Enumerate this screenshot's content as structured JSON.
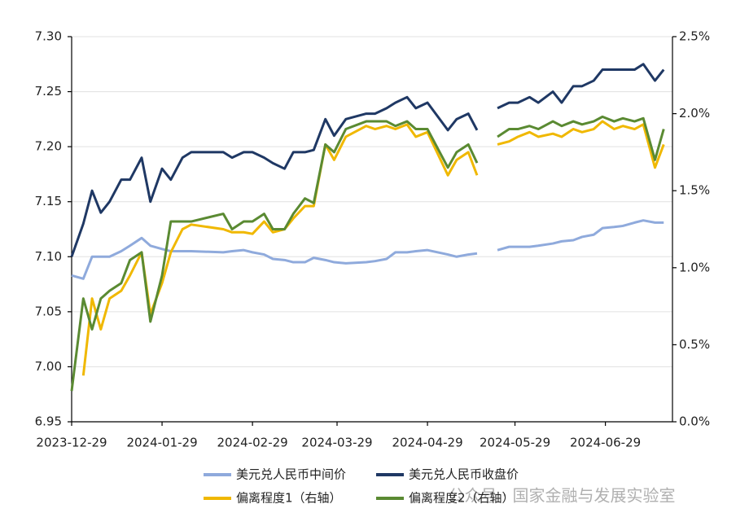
{
  "chart_data": {
    "type": "line",
    "x": [
      "2023-12-29",
      "2024-01-02",
      "2024-01-05",
      "2024-01-08",
      "2024-01-11",
      "2024-01-15",
      "2024-01-18",
      "2024-01-22",
      "2024-01-25",
      "2024-01-29",
      "2024-02-01",
      "2024-02-05",
      "2024-02-08",
      "2024-02-19",
      "2024-02-22",
      "2024-02-26",
      "2024-02-29",
      "2024-03-04",
      "2024-03-07",
      "2024-03-11",
      "2024-03-14",
      "2024-03-18",
      "2024-03-21",
      "2024-03-25",
      "2024-03-28",
      "2024-04-01",
      "2024-04-08",
      "2024-04-11",
      "2024-04-15",
      "2024-04-18",
      "2024-04-22",
      "2024-04-25",
      "2024-04-29",
      "2024-05-06",
      "2024-05-09",
      "2024-05-13",
      "2024-05-16",
      "2024-05-20",
      "2024-05-23",
      "2024-05-27",
      "2024-05-30",
      "2024-06-03",
      "2024-06-06",
      "2024-06-11",
      "2024-06-14",
      "2024-06-18",
      "2024-06-21",
      "2024-06-25",
      "2024-06-28",
      "2024-07-02",
      "2024-07-05",
      "2024-07-09",
      "2024-07-12",
      "2024-07-16",
      "2024-07-19"
    ],
    "series": [
      {
        "name": "美元兑人民币中间价",
        "color": "#8faadc",
        "values": [
          7.083,
          7.08,
          7.1,
          7.1,
          7.1,
          7.105,
          7.11,
          7.117,
          7.11,
          7.107,
          7.105,
          7.105,
          7.105,
          7.104,
          7.105,
          7.106,
          7.104,
          7.102,
          7.098,
          7.097,
          7.095,
          7.095,
          7.099,
          7.097,
          7.095,
          7.094,
          7.095,
          7.096,
          7.098,
          7.104,
          7.104,
          7.105,
          7.106,
          7.102,
          7.1,
          7.102,
          7.103,
          null,
          7.106,
          7.109,
          7.109,
          7.109,
          7.11,
          7.112,
          7.114,
          7.115,
          7.118,
          7.12,
          7.126,
          7.127,
          7.128,
          7.131,
          7.133,
          7.131,
          7.131
        ]
      },
      {
        "name": "美元兑人民币收盘价",
        "color": "#1f3864",
        "values": [
          7.1,
          7.13,
          7.16,
          7.14,
          7.15,
          7.17,
          7.17,
          7.19,
          7.15,
          7.18,
          7.17,
          7.19,
          7.195,
          7.195,
          7.19,
          7.195,
          7.195,
          7.19,
          7.185,
          7.18,
          7.195,
          7.195,
          7.197,
          7.225,
          7.21,
          7.225,
          7.23,
          7.23,
          7.235,
          7.24,
          7.245,
          7.235,
          7.24,
          7.215,
          7.225,
          7.23,
          7.215,
          null,
          7.235,
          7.24,
          7.24,
          7.245,
          7.24,
          7.25,
          7.24,
          7.255,
          7.255,
          7.26,
          7.27,
          7.27,
          7.27,
          7.27,
          7.275,
          7.26,
          7.27
        ]
      },
      {
        "name": "偏离程度1（右轴）",
        "color": "#f0b800",
        "axis": "y2",
        "values": [
          null,
          0.3,
          0.8,
          0.6,
          0.8,
          0.85,
          0.95,
          1.1,
          0.7,
          0.9,
          1.1,
          1.25,
          1.28,
          1.25,
          1.23,
          1.23,
          1.22,
          1.3,
          1.23,
          1.25,
          1.32,
          1.4,
          1.4,
          1.8,
          1.7,
          1.85,
          1.92,
          1.9,
          1.92,
          1.9,
          1.93,
          1.85,
          1.88,
          1.6,
          1.7,
          1.75,
          1.6,
          null,
          1.8,
          1.82,
          1.85,
          1.88,
          1.85,
          1.87,
          1.85,
          1.9,
          1.88,
          1.9,
          1.95,
          1.9,
          1.92,
          1.9,
          1.93,
          1.65,
          1.8
        ]
      },
      {
        "name": "偏离程度2（右轴）",
        "color": "#5a8a32",
        "axis": "y2",
        "values": [
          0.2,
          0.8,
          0.6,
          0.8,
          0.85,
          0.9,
          1.05,
          1.1,
          0.65,
          0.95,
          1.3,
          1.3,
          1.3,
          1.35,
          1.25,
          1.3,
          1.3,
          1.35,
          1.25,
          1.25,
          1.35,
          1.45,
          1.42,
          1.8,
          1.75,
          1.9,
          1.95,
          1.95,
          1.95,
          1.92,
          1.95,
          1.9,
          1.9,
          1.65,
          1.75,
          1.8,
          1.68,
          null,
          1.85,
          1.9,
          1.9,
          1.92,
          1.9,
          1.95,
          1.92,
          1.95,
          1.93,
          1.95,
          1.98,
          1.95,
          1.97,
          1.95,
          1.97,
          1.7,
          1.9
        ]
      }
    ],
    "xlim": [
      "2023-12-29",
      "2024-07-22"
    ],
    "xticks": [
      "2023-12-29",
      "2024-01-29",
      "2024-02-29",
      "2024-03-29",
      "2024-04-29",
      "2024-05-29",
      "2024-06-29"
    ],
    "ylim": [
      6.95,
      7.3
    ],
    "yticks": [
      6.95,
      {
        "value": 7,
        "label": "7.00"
      },
      7.05,
      {
        "value": 7.1,
        "label": "7.10"
      },
      7.15,
      {
        "value": 7.2,
        "label": "7.20"
      },
      7.25,
      {
        "value": 7.3,
        "label": "7.30"
      }
    ],
    "y2lim": [
      0,
      2.5
    ],
    "y2ticks": [
      {
        "value": 0,
        "label": "0.0%"
      },
      {
        "value": 0.5,
        "label": "0.5%"
      },
      {
        "value": 1,
        "label": "1.0%"
      },
      {
        "value": 1.5,
        "label": "1.5%"
      },
      {
        "value": 2,
        "label": "2.0%"
      },
      {
        "value": 2.5,
        "label": "2.5%"
      }
    ],
    "grid": true,
    "watermark": "公众号 · 国家金融与发展实验室"
  }
}
